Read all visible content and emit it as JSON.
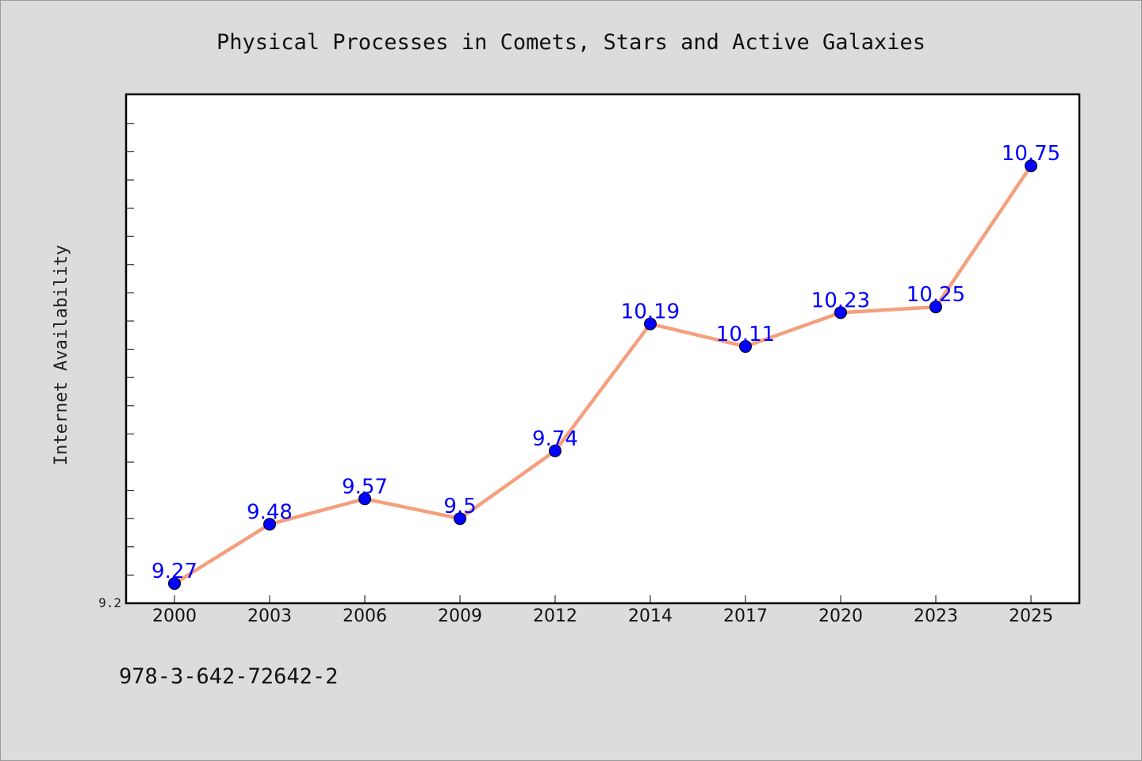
{
  "chart_data": {
    "type": "line",
    "title": "Physical Processes in Comets, Stars and Active Galaxies",
    "xlabel": "",
    "ylabel": "Internet Availability",
    "categories": [
      "2000",
      "2003",
      "2006",
      "2009",
      "2012",
      "2014",
      "2017",
      "2020",
      "2023",
      "2025"
    ],
    "series": [
      {
        "values": [
          9.27,
          9.48,
          9.57,
          9.5,
          9.74,
          10.19,
          10.11,
          10.23,
          10.25,
          10.75
        ],
        "labels": [
          "9.27",
          "9.48",
          "9.57",
          "9.5",
          "9.74",
          "10.19",
          "10.11",
          "10.23",
          "10.25",
          "10.75"
        ],
        "line_color": "#f4a07e",
        "marker_color": "#0000ff"
      }
    ],
    "ylim": [
      9.2,
      11.0
    ],
    "y_tick_labels": [
      "9.2"
    ],
    "grid": false,
    "legend": "none",
    "data_labels": true
  },
  "footer": {
    "isbn": "978-3-642-72642-2"
  }
}
